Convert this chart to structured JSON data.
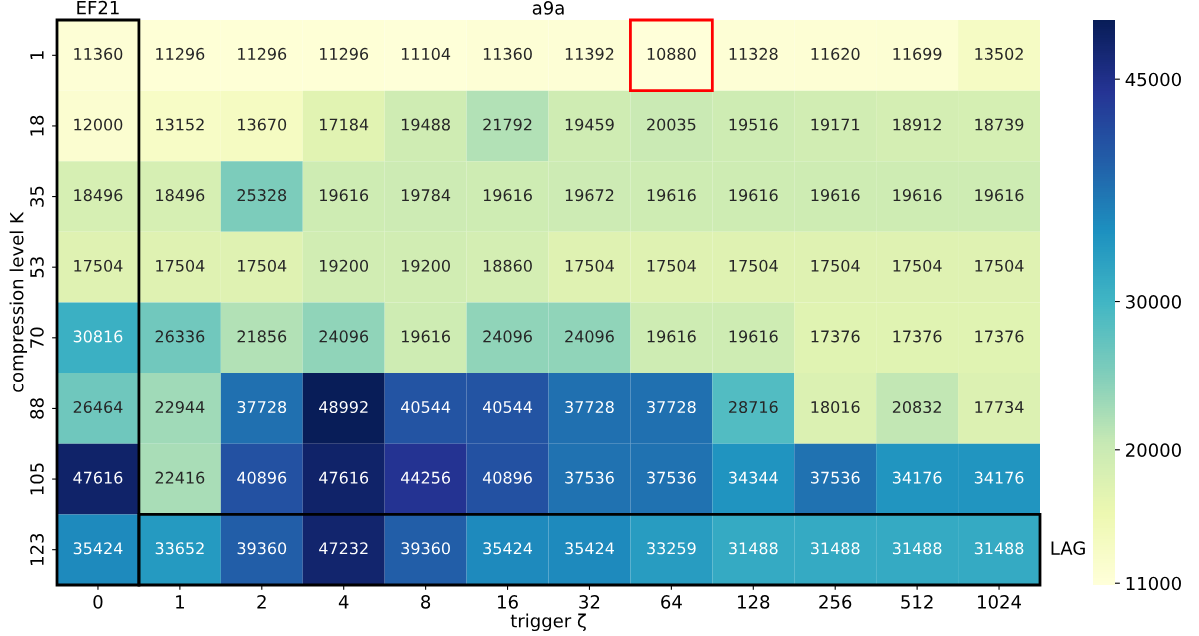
{
  "chart_data": {
    "type": "heatmap",
    "title": "a9a",
    "xlabel": "trigger ζ",
    "ylabel": "compression level K",
    "categories": [
      "0",
      "1",
      "2",
      "4",
      "8",
      "16",
      "32",
      "64",
      "128",
      "256",
      "512",
      "1024"
    ],
    "y_categories": [
      "1",
      "18",
      "35",
      "53",
      "70",
      "88",
      "105",
      "123"
    ],
    "cells": [
      [
        11360,
        11296,
        11296,
        11296,
        11104,
        11360,
        11392,
        10880,
        11328,
        11620,
        11699,
        13502
      ],
      [
        12000,
        13152,
        13670,
        17184,
        19488,
        21792,
        19459,
        20035,
        19516,
        19171,
        18912,
        18739
      ],
      [
        18496,
        18496,
        25328,
        19616,
        19784,
        19616,
        19672,
        19616,
        19616,
        19616,
        19616,
        19616
      ],
      [
        17504,
        17504,
        17504,
        19200,
        19200,
        18860,
        17504,
        17504,
        17504,
        17504,
        17504,
        17504
      ],
      [
        30816,
        26336,
        21856,
        24096,
        19616,
        24096,
        24096,
        19616,
        19616,
        17376,
        17376,
        17376
      ],
      [
        26464,
        22944,
        37728,
        48992,
        40544,
        40544,
        37728,
        37728,
        28716,
        18016,
        20832,
        17734
      ],
      [
        47616,
        22416,
        40896,
        47616,
        44256,
        40896,
        37536,
        37536,
        34344,
        37536,
        34176,
        34176
      ],
      [
        35424,
        33652,
        39360,
        47232,
        39360,
        35424,
        35424,
        33259,
        31488,
        31488,
        31488,
        31488
      ]
    ],
    "clim": [
      10880,
      48992
    ],
    "cticks": [
      11000,
      20000,
      30000,
      45000
    ],
    "data_labels": true,
    "annotations": [
      "EF21",
      "LAG"
    ]
  }
}
